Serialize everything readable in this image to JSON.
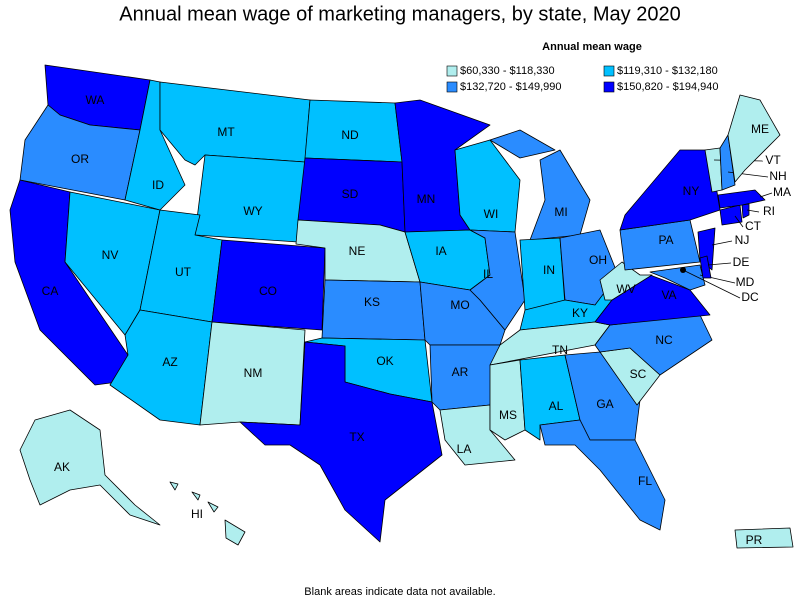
{
  "title": "Annual mean wage of marketing managers, by state, May 2020",
  "legend": {
    "title": "Annual mean wage",
    "items": [
      {
        "label": "$60,330 - $118,330",
        "color": "#b0eeee"
      },
      {
        "label": "$119,310 - $132,180",
        "color": "#00c0ff"
      },
      {
        "label": "$132,720 - $149,990",
        "color": "#2a8cff"
      },
      {
        "label": "$150,820 - $194,940",
        "color": "#0000ff"
      }
    ]
  },
  "states": [
    {
      "label": "WA",
      "range": 3
    },
    {
      "label": "OR",
      "range": 2
    },
    {
      "label": "CA",
      "range": 3
    },
    {
      "label": "NV",
      "range": 1
    },
    {
      "label": "ID",
      "range": 1
    },
    {
      "label": "MT",
      "range": 1
    },
    {
      "label": "WY",
      "range": 1
    },
    {
      "label": "UT",
      "range": 1
    },
    {
      "label": "AZ",
      "range": 1
    },
    {
      "label": "CO",
      "range": 3
    },
    {
      "label": "NM",
      "range": 0
    },
    {
      "label": "ND",
      "range": 1
    },
    {
      "label": "SD",
      "range": 3
    },
    {
      "label": "NE",
      "range": 0
    },
    {
      "label": "KS",
      "range": 2
    },
    {
      "label": "OK",
      "range": 1
    },
    {
      "label": "TX",
      "range": 3
    },
    {
      "label": "MN",
      "range": 3
    },
    {
      "label": "IA",
      "range": 1
    },
    {
      "label": "MO",
      "range": 2
    },
    {
      "label": "AR",
      "range": 2
    },
    {
      "label": "LA",
      "range": 0
    },
    {
      "label": "WI",
      "range": 1
    },
    {
      "label": "IL",
      "range": 2
    },
    {
      "label": "MI",
      "range": 2
    },
    {
      "label": "IN",
      "range": 1
    },
    {
      "label": "OH",
      "range": 2
    },
    {
      "label": "KY",
      "range": 1
    },
    {
      "label": "TN",
      "range": 0
    },
    {
      "label": "MS",
      "range": 0
    },
    {
      "label": "AL",
      "range": 1
    },
    {
      "label": "GA",
      "range": 2
    },
    {
      "label": "FL",
      "range": 2
    },
    {
      "label": "SC",
      "range": 0
    },
    {
      "label": "NC",
      "range": 2
    },
    {
      "label": "VA",
      "range": 3
    },
    {
      "label": "WV",
      "range": 0
    },
    {
      "label": "PA",
      "range": 2
    },
    {
      "label": "NY",
      "range": 3
    },
    {
      "label": "NJ",
      "range": 3
    },
    {
      "label": "MD",
      "range": 2
    },
    {
      "label": "DE",
      "range": 3
    },
    {
      "label": "DC"
    },
    {
      "label": "CT",
      "range": 3
    },
    {
      "label": "RI",
      "range": 3
    },
    {
      "label": "MA",
      "range": 3
    },
    {
      "label": "VT",
      "range": 0
    },
    {
      "label": "NH",
      "range": 2
    },
    {
      "label": "ME",
      "range": 0
    },
    {
      "label": "AK",
      "range": 0
    },
    {
      "label": "HI",
      "range": 0
    },
    {
      "label": "PR",
      "range": 0
    }
  ],
  "footnote": "Blank areas indicate data not available."
}
